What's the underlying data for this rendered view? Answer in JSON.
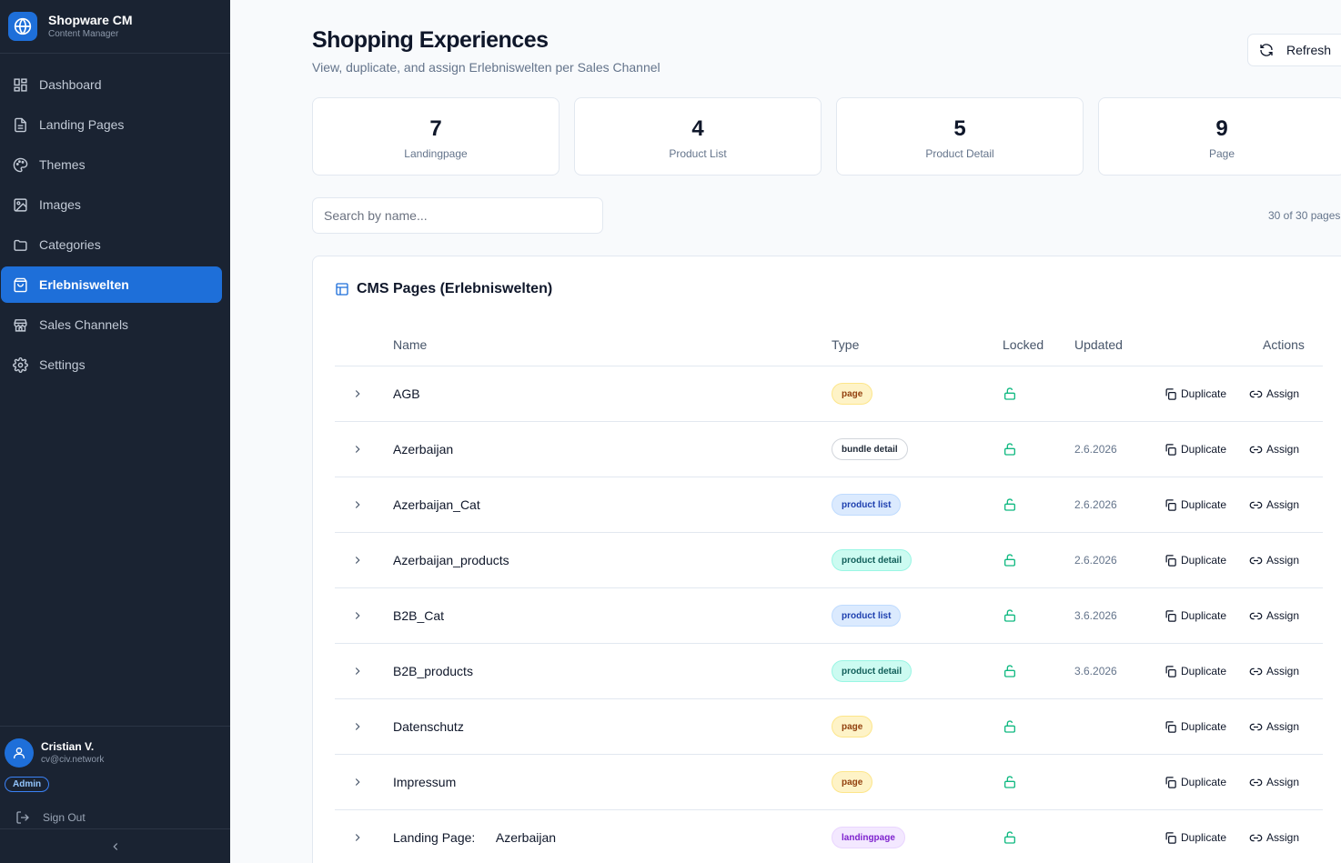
{
  "brand": {
    "title": "Shopware CM",
    "subtitle": "Content Manager",
    "icon": "globe-icon"
  },
  "nav": [
    {
      "label": "Dashboard",
      "icon": "dashboard-icon",
      "active": false
    },
    {
      "label": "Landing Pages",
      "icon": "file-icon",
      "active": false
    },
    {
      "label": "Themes",
      "icon": "palette-icon",
      "active": false
    },
    {
      "label": "Images",
      "icon": "image-icon",
      "active": false
    },
    {
      "label": "Categories",
      "icon": "folder-icon",
      "active": false
    },
    {
      "label": "Erlebniswelten",
      "icon": "shopping-bag-icon",
      "active": true
    },
    {
      "label": "Sales Channels",
      "icon": "store-icon",
      "active": false
    },
    {
      "label": "Settings",
      "icon": "gear-icon",
      "active": false
    }
  ],
  "user": {
    "name": "Cristian V.",
    "email": "cv@civ.network",
    "role": "Admin",
    "signout": "Sign Out"
  },
  "page": {
    "title": "Shopping Experiences",
    "subtitle": "View, duplicate, and assign Erlebniswelten per Sales Channel",
    "refresh_label": "Refresh"
  },
  "stats": [
    {
      "value": "7",
      "label": "Landingpage"
    },
    {
      "value": "4",
      "label": "Product List"
    },
    {
      "value": "5",
      "label": "Product Detail"
    },
    {
      "value": "9",
      "label": "Page"
    }
  ],
  "search": {
    "placeholder": "Search by name...",
    "value": ""
  },
  "count_text": "30 of 30 pages",
  "card": {
    "title": "CMS Pages (Erlebniswelten)",
    "columns": {
      "name": "Name",
      "type": "Type",
      "locked": "Locked",
      "updated": "Updated",
      "actions": "Actions"
    },
    "duplicate_label": "Duplicate",
    "assign_label": "Assign",
    "rows": [
      {
        "name": "AGB",
        "type": "page",
        "updated": ""
      },
      {
        "name": "Azerbaijan",
        "type": "bundle detail",
        "updated": "2.6.2026"
      },
      {
        "name": "Azerbaijan_Cat",
        "type": "product list",
        "updated": "2.6.2026"
      },
      {
        "name": "Azerbaijan_products",
        "type": "product detail",
        "updated": "2.6.2026"
      },
      {
        "name": "B2B_Cat",
        "type": "product list",
        "updated": "3.6.2026"
      },
      {
        "name": "B2B_products",
        "type": "product detail",
        "updated": "3.6.2026"
      },
      {
        "name": "Datenschutz",
        "type": "page",
        "updated": ""
      },
      {
        "name": "Impressum",
        "type": "page",
        "updated": ""
      },
      {
        "name": "Landing Page:      Azerbaijan",
        "type": "landingpage",
        "updated": ""
      }
    ]
  },
  "colors": {
    "sidebar_bg": "#1a2332",
    "accent": "#1e6fd9",
    "lock": "#10b981"
  }
}
